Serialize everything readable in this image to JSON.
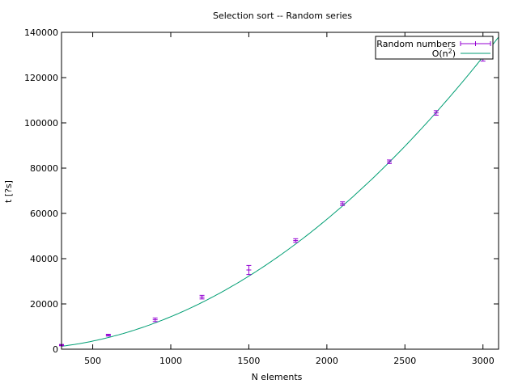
{
  "chart_data": {
    "type": "scatter",
    "title": "Selection sort -- Random series",
    "xlabel": "N elements",
    "ylabel": "t [?s]",
    "xlim": [
      300,
      3100
    ],
    "ylim": [
      0,
      140000
    ],
    "xticks": [
      500,
      1000,
      1500,
      2000,
      2500,
      3000
    ],
    "yticks": [
      0,
      20000,
      40000,
      60000,
      80000,
      100000,
      120000,
      140000
    ],
    "grid": false,
    "legend_position": "top-right",
    "series": [
      {
        "name": "Random numbers",
        "kind": "errorbars",
        "color": "#9400d3",
        "points": [
          {
            "x": 300,
            "y": 1800,
            "err": 300
          },
          {
            "x": 600,
            "y": 6200,
            "err": 400
          },
          {
            "x": 900,
            "y": 13000,
            "err": 800
          },
          {
            "x": 1200,
            "y": 23000,
            "err": 800
          },
          {
            "x": 1500,
            "y": 35000,
            "err": 2000
          },
          {
            "x": 1800,
            "y": 48000,
            "err": 800
          },
          {
            "x": 2100,
            "y": 64300,
            "err": 800
          },
          {
            "x": 2400,
            "y": 82800,
            "err": 800
          },
          {
            "x": 2700,
            "y": 104400,
            "err": 1000
          },
          {
            "x": 3000,
            "y": 128300,
            "err": 1000
          }
        ]
      },
      {
        "name": "O(n2)",
        "name_base": "O(n",
        "name_sup": "2",
        "name_end": ")",
        "kind": "line",
        "color": "#009e73",
        "coefficient": 0.01435
      }
    ]
  }
}
